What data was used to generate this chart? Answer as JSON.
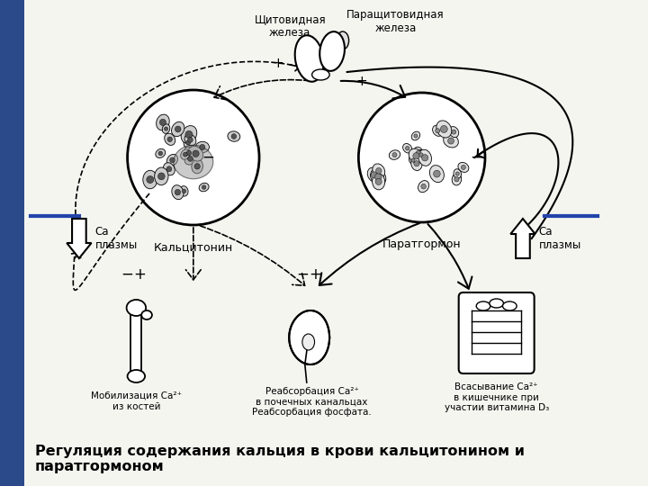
{
  "caption": "Регуляция содержания кальция в крови кальцитонином и\nпаратгормоном",
  "bg_color": "#f5f5f0",
  "text_color": "#111111",
  "sidebar_color": "#2a4a8a",
  "labels": {
    "thyroid": "Щитовидная\nжелеза",
    "parathyroid": "Паращитовидная\nжелеза",
    "calcitonin": "Кальцитонин",
    "parathormone": "Паратгормон",
    "ca_left": "Са\nплазмы",
    "ca_right": "Са\nплазмы",
    "bone": "Мобилизация Са²⁺\nиз костей",
    "kidney": "Реабсорбация Са²⁺\nв почечных канальцах\nРеабсорбация фосфата.",
    "intestine": "Всасывание Са²⁺\nв кишечнике при\nучастии витамина D₃"
  }
}
